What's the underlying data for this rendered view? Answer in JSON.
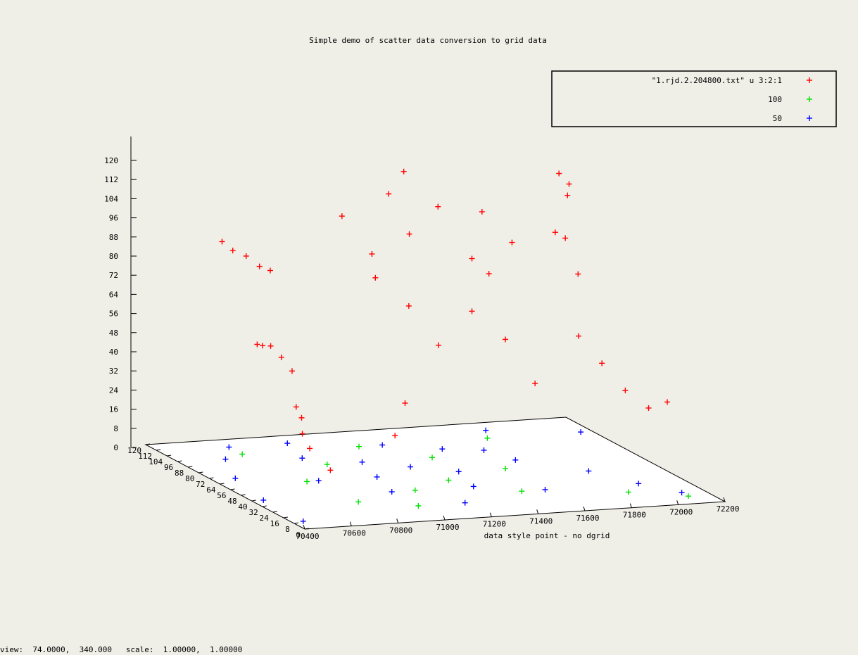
{
  "window": {
    "status_text": "view:  74.0000,  340.000   scale:  1.00000,  1.00000"
  },
  "chart_data": {
    "type": "scatter",
    "dimensions": 3,
    "title": "Simple demo of scatter data conversion to grid data",
    "xlabel": "data style point - no dgrid",
    "ylabel": "",
    "zlabel": "",
    "xlim": [
      70400,
      72200
    ],
    "ylim": [
      0,
      120
    ],
    "zlim": [
      0,
      120
    ],
    "x_ticks": [
      "70400",
      "70600",
      "70800",
      "71000",
      "71200",
      "71400",
      "71600",
      "71800",
      "72000",
      "72200"
    ],
    "y_ticks": [
      "0",
      "8",
      "16",
      "24",
      "32",
      "40",
      "48",
      "56",
      "64",
      "72",
      "80",
      "88",
      "96",
      "104",
      "112",
      "120"
    ],
    "z_ticks": [
      "0",
      "8",
      "16",
      "24",
      "32",
      "40",
      "48",
      "56",
      "64",
      "72",
      "80",
      "88",
      "96",
      "104",
      "112",
      "120"
    ],
    "grid": false,
    "legend_position": "top-right",
    "marker": "+",
    "series": [
      {
        "name": "\"1.rjd.2.204800.txt\" u 3:2:1",
        "color": "#ff0000",
        "values": [
          [
            70420,
            10,
            48
          ],
          [
            70500,
            20,
            40
          ],
          [
            70560,
            30,
            30
          ],
          [
            70620,
            35,
            22
          ],
          [
            70680,
            30,
            14
          ],
          [
            70480,
            50,
            62
          ],
          [
            70560,
            60,
            58
          ],
          [
            70640,
            68,
            55
          ],
          [
            70720,
            74,
            48
          ],
          [
            70800,
            80,
            40
          ],
          [
            70500,
            80,
            96
          ],
          [
            70580,
            86,
            90
          ],
          [
            70660,
            90,
            86
          ],
          [
            70740,
            94,
            80
          ],
          [
            70820,
            100,
            76
          ],
          [
            70900,
            60,
            110
          ],
          [
            71000,
            55,
            95
          ],
          [
            71100,
            60,
            118
          ],
          [
            71200,
            62,
            100
          ],
          [
            71300,
            58,
            112
          ],
          [
            71400,
            50,
            92
          ],
          [
            71500,
            60,
            108
          ],
          [
            71600,
            55,
            96
          ],
          [
            71700,
            40,
            104
          ],
          [
            71800,
            50,
            98
          ],
          [
            71900,
            58,
            80
          ],
          [
            72000,
            90,
            112
          ],
          [
            72100,
            100,
            104
          ],
          [
            72150,
            110,
            96
          ],
          [
            71800,
            40,
            60
          ],
          [
            71900,
            40,
            48
          ],
          [
            72000,
            40,
            36
          ],
          [
            72100,
            40,
            28
          ],
          [
            72180,
            40,
            30
          ],
          [
            71000,
            30,
            40
          ],
          [
            71200,
            40,
            60
          ],
          [
            71400,
            50,
            70
          ],
          [
            71600,
            60,
            54
          ],
          [
            71100,
            70,
            80
          ],
          [
            71300,
            80,
            64
          ],
          [
            71500,
            20,
            48
          ],
          [
            70900,
            20,
            30
          ],
          [
            71700,
            90,
            72
          ],
          [
            71250,
            75,
            122
          ]
        ]
      },
      {
        "name": "100",
        "color": "#00e000",
        "values": [
          [
            70700,
            100,
            0
          ],
          [
            70750,
            60,
            0
          ],
          [
            70950,
            80,
            0
          ],
          [
            71100,
            40,
            0
          ],
          [
            71200,
            100,
            0
          ],
          [
            71400,
            80,
            0
          ],
          [
            71600,
            60,
            0
          ],
          [
            71750,
            100,
            0
          ],
          [
            71900,
            20,
            0
          ],
          [
            72100,
            10,
            0
          ],
          [
            71000,
            20,
            0
          ],
          [
            71300,
            50,
            0
          ],
          [
            70800,
            30,
            0
          ],
          [
            71500,
            30,
            0
          ]
        ]
      },
      {
        "name": "50",
        "color": "#0000ff",
        "values": [
          [
            70450,
            10,
            0
          ],
          [
            70450,
            40,
            0
          ],
          [
            70500,
            70,
            0
          ],
          [
            70600,
            95,
            0
          ],
          [
            70700,
            110,
            0
          ],
          [
            70800,
            60,
            0
          ],
          [
            70900,
            90,
            0
          ],
          [
            71000,
            40,
            0
          ],
          [
            71100,
            80,
            0
          ],
          [
            71200,
            20,
            0
          ],
          [
            71300,
            100,
            0
          ],
          [
            71400,
            60,
            0
          ],
          [
            71500,
            90,
            0
          ],
          [
            71600,
            30,
            0
          ],
          [
            71700,
            70,
            0
          ],
          [
            71800,
            110,
            0
          ],
          [
            71900,
            50,
            0
          ],
          [
            72000,
            30,
            0
          ],
          [
            72100,
            15,
            0
          ],
          [
            72150,
            100,
            0
          ],
          [
            71050,
            60,
            0
          ],
          [
            71350,
            40,
            0
          ],
          [
            71650,
            85,
            0
          ],
          [
            70950,
            110,
            0
          ],
          [
            71250,
            70,
            0
          ]
        ]
      }
    ]
  }
}
